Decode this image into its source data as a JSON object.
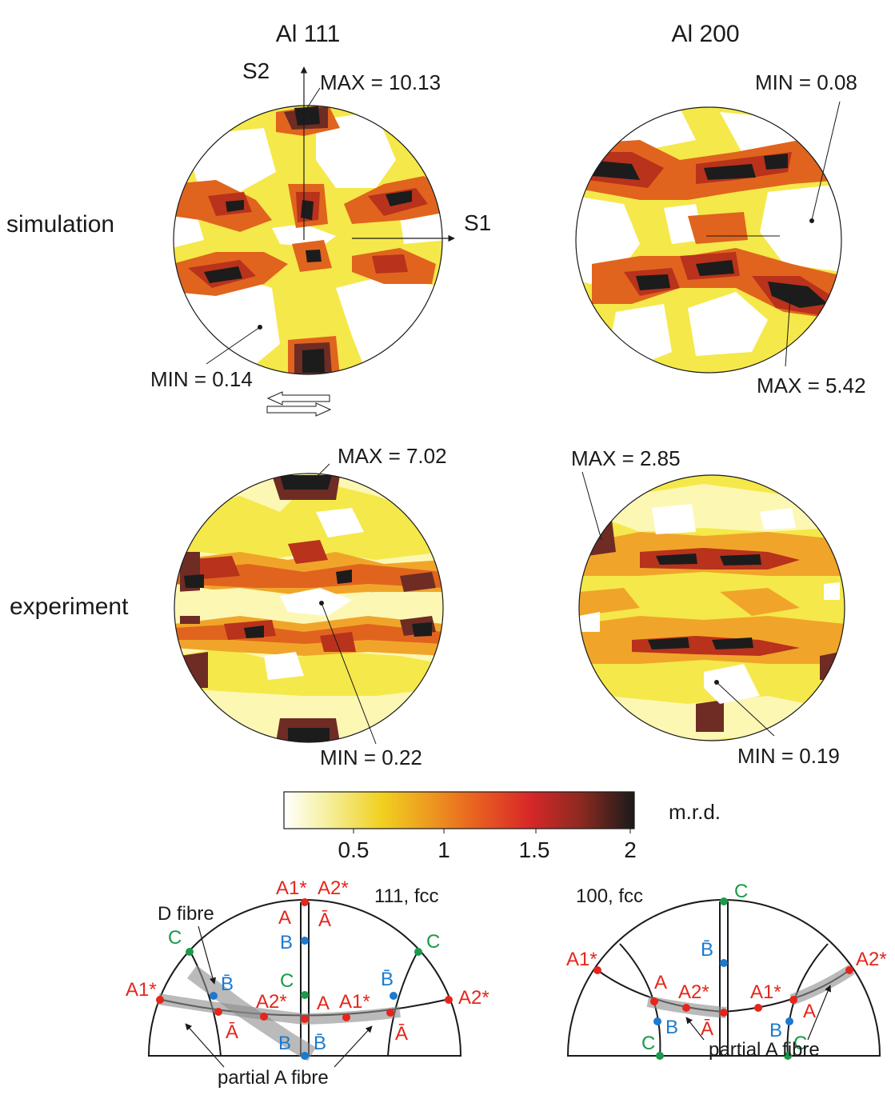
{
  "columns": {
    "left": "Al 111",
    "right": "Al 200"
  },
  "rows": {
    "top": "simulation",
    "bottom": "experiment"
  },
  "axes": {
    "s1": "S1",
    "s2": "S2"
  },
  "annotations": {
    "sim111_max": "MAX = 10.13",
    "sim111_min": "MIN = 0.14",
    "sim200_min": "MIN = 0.08",
    "sim200_max": "MAX = 5.42",
    "exp111_max": "MAX = 7.02",
    "exp111_min": "MIN = 0.22",
    "exp200_max": "MAX = 2.85",
    "exp200_min": "MIN = 0.19"
  },
  "colorbar": {
    "unit": "m.r.d.",
    "ticks": [
      "0.5",
      "1",
      "1.5",
      "2"
    ],
    "stops": [
      "#ffffff",
      "#f6f0a0",
      "#f0d020",
      "#eea020",
      "#e86020",
      "#d82828",
      "#8a2a20",
      "#1a1a1a"
    ]
  },
  "contour_colors": [
    "#ffffff",
    "#fdf7b4",
    "#f5e84a",
    "#f0a52a",
    "#e0641e",
    "#b8321c",
    "#6e2c24",
    "#1c1c1c"
  ],
  "schematic_111": {
    "title": "111, fcc",
    "d_fibre": "D fibre",
    "partial_a_fibre": "partial A fibre",
    "points": {
      "a1star_top": "A1*",
      "a2star_top": "A2*",
      "a_top": "A",
      "abar_top": "Ā",
      "b_mid": "B",
      "c_mid": "C",
      "c_left": "C",
      "c_right": "C",
      "bbar_left": "B̄",
      "bbar_right": "B̄",
      "a1star_left": "A1*",
      "a2star_right": "A2*",
      "a2star_center": "A2*",
      "a_center": "A",
      "a1star_center": "A1*",
      "abar_left": "Ā",
      "abar_right": "Ā",
      "b_bottom": "B",
      "bbar_bottom": "B̄"
    }
  },
  "schematic_100": {
    "title": "100, fcc",
    "partial_a_fibre": "partial A fibre",
    "points": {
      "c_top": "C",
      "bbar_mid": "B̄",
      "a1star_left": "A1*",
      "a2star_right": "A2*",
      "a_left": "A",
      "a2star_center": "A2*",
      "a1star_center": "A1*",
      "a_right": "A",
      "b_left": "B",
      "b_right": "B",
      "c_left": "C",
      "c_right": "C",
      "abar_center": "Ā"
    }
  }
}
